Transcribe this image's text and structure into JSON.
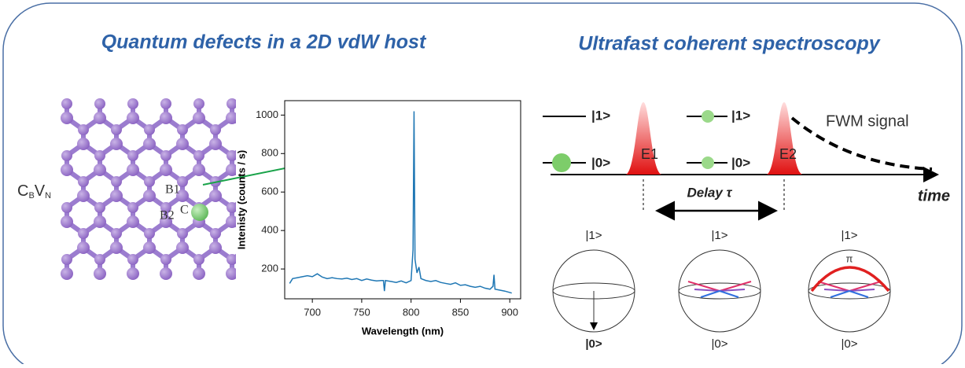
{
  "titles": {
    "left": "Quantum defects in a 2D vdW host",
    "right": "Ultrafast coherent spectroscopy"
  },
  "lattice": {
    "defect": [
      "C",
      "B",
      "V",
      "N"
    ],
    "atoms": [
      "B1",
      "B2",
      "C"
    ]
  },
  "chart_data": {
    "type": "line",
    "x_label": "Wavelength (nm)",
    "y_label": "Intenisty (counts / s)",
    "color": "#1f77b4",
    "x": [
      677,
      680,
      685,
      690,
      695,
      700,
      705,
      710,
      715,
      720,
      725,
      730,
      735,
      740,
      745,
      750,
      755,
      760,
      765,
      770,
      772,
      773,
      774,
      780,
      785,
      790,
      795,
      800,
      802,
      803,
      804,
      806,
      808,
      810,
      815,
      820,
      825,
      830,
      835,
      840,
      845,
      850,
      855,
      860,
      865,
      870,
      875,
      880,
      883,
      884,
      885,
      890,
      895,
      902
    ],
    "values": [
      125,
      150,
      155,
      160,
      165,
      160,
      175,
      158,
      150,
      155,
      150,
      148,
      152,
      145,
      150,
      140,
      148,
      142,
      138,
      140,
      140,
      85,
      140,
      135,
      130,
      138,
      128,
      140,
      300,
      1020,
      250,
      180,
      210,
      150,
      140,
      135,
      140,
      130,
      125,
      120,
      128,
      115,
      118,
      110,
      105,
      110,
      100,
      95,
      110,
      170,
      95,
      90,
      85,
      75
    ],
    "xlim": [
      672,
      911
    ],
    "ylim": [
      45,
      1075
    ],
    "xticks": [
      700,
      750,
      800,
      850,
      900
    ],
    "yticks": [
      200,
      400,
      600,
      800,
      1000
    ]
  },
  "spectroscopy": {
    "levels": [
      "|1>",
      "|0>",
      "|1>",
      "|0>"
    ],
    "pulses": [
      "E1",
      "E2"
    ],
    "signal": "FWM signal",
    "delay": "Delay τ",
    "axis": "time"
  },
  "bloch": [
    {
      "top": "|1>",
      "bottom": "|0>"
    },
    {
      "top": "|1>",
      "bottom": "|0>"
    },
    {
      "top": "|1>",
      "bottom": "|0>"
    }
  ],
  "pi": "π"
}
